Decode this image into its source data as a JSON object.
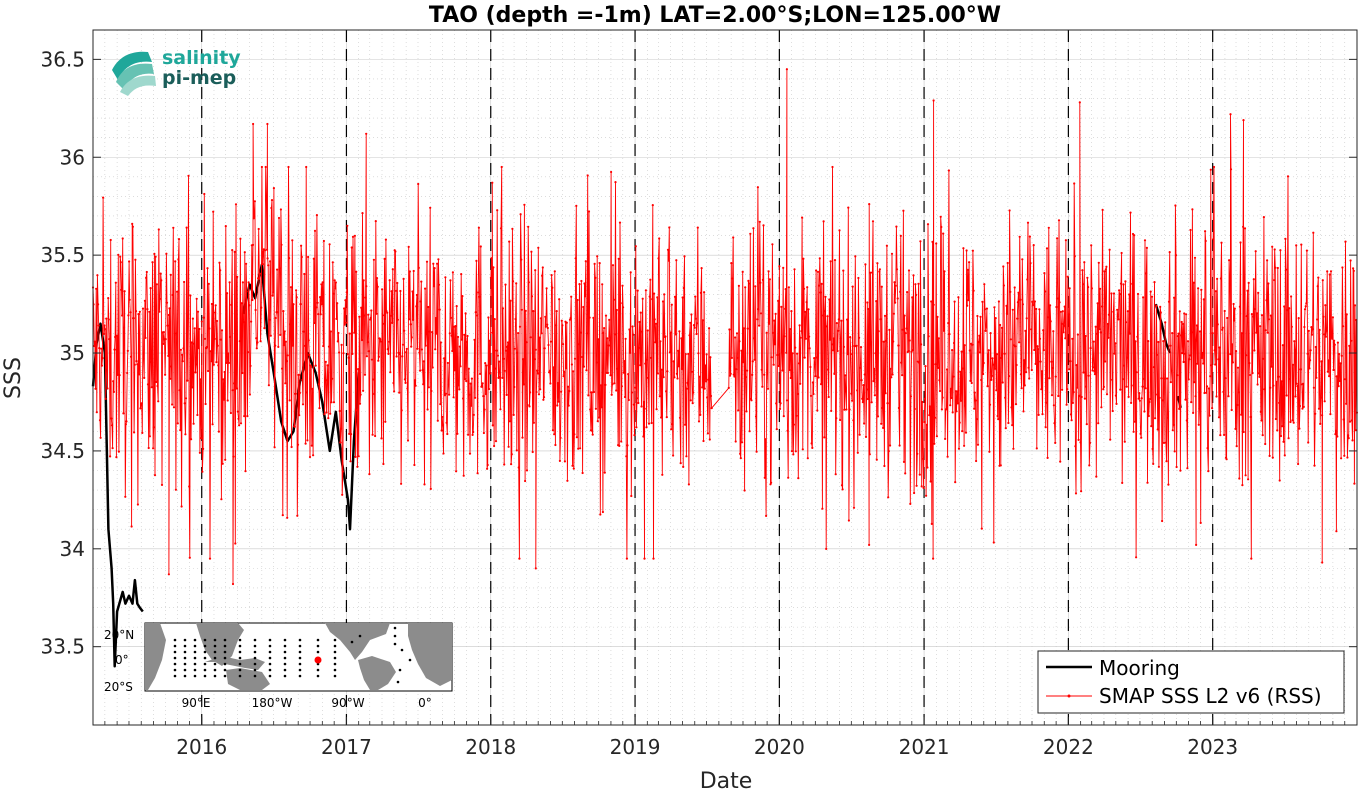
{
  "chart_data": {
    "type": "line",
    "title": "TAO (depth =-1m) LAT=2.00°S;LON=125.00°W",
    "xlabel": "Date",
    "ylabel": "SSS",
    "xlim": [
      "2015-04-01",
      "2024-01-01"
    ],
    "ylim": [
      33.1,
      36.65
    ],
    "yticks": [
      33.5,
      34,
      34.5,
      35,
      35.5,
      36,
      36.5
    ],
    "ytick_labels": [
      "33.5",
      "34",
      "34.5",
      "35",
      "35.5",
      "36",
      "36.5"
    ],
    "xticks": [
      "2016-01-01",
      "2017-01-01",
      "2018-01-01",
      "2019-01-01",
      "2020-01-01",
      "2021-01-01",
      "2022-01-01",
      "2023-01-01"
    ],
    "xtick_labels": [
      "2016",
      "2017",
      "2018",
      "2019",
      "2020",
      "2021",
      "2022",
      "2023"
    ],
    "vlines_dashed": [
      "2016-01-01",
      "2017-01-01",
      "2018-01-01",
      "2019-01-01",
      "2020-01-01",
      "2021-01-01",
      "2022-01-01",
      "2023-01-01"
    ],
    "grid": true,
    "legend_position": "bottom-right",
    "series": [
      {
        "name": "Mooring",
        "color": "#000000",
        "style": "thick line",
        "points": [
          [
            "2015-04-01",
            34.83
          ],
          [
            "2015-04-10",
            35.05
          ],
          [
            "2015-04-20",
            35.15
          ],
          [
            "2015-05-01",
            35.0
          ],
          [
            "2015-05-10",
            34.1
          ],
          [
            "2015-05-14",
            34.0
          ],
          [
            "2015-05-18",
            33.9
          ],
          [
            "2015-05-22",
            33.72
          ],
          [
            "2015-05-26",
            33.4
          ],
          [
            "2015-06-01",
            33.68
          ],
          [
            "2015-06-08",
            33.73
          ],
          [
            "2015-06-15",
            33.78
          ],
          [
            "2015-06-22",
            33.72
          ],
          [
            "2015-07-01",
            33.76
          ],
          [
            "2015-07-10",
            33.72
          ],
          [
            "2015-07-16",
            33.84
          ],
          [
            "2015-07-22",
            33.72
          ],
          [
            "2015-07-28",
            33.7
          ],
          [
            "2015-08-05",
            33.68
          ]
        ],
        "segments_later": [
          [
            [
              "2016-04-15",
              35.2
            ],
            [
              "2016-05-01",
              35.35
            ],
            [
              "2016-05-15",
              35.28
            ],
            [
              "2016-06-01",
              35.45
            ],
            [
              "2016-06-15",
              35.1
            ],
            [
              "2016-07-01",
              34.9
            ],
            [
              "2016-07-20",
              34.65
            ],
            [
              "2016-08-05",
              34.55
            ],
            [
              "2016-08-20",
              34.6
            ],
            [
              "2016-09-05",
              34.85
            ],
            [
              "2016-09-25",
              35.0
            ],
            [
              "2016-10-15",
              34.9
            ],
            [
              "2016-11-01",
              34.75
            ],
            [
              "2016-11-20",
              34.5
            ],
            [
              "2016-12-05",
              34.7
            ],
            [
              "2016-12-20",
              34.45
            ],
            [
              "2017-01-05",
              34.25
            ],
            [
              "2017-01-10",
              34.1
            ],
            [
              "2017-01-20",
              34.55
            ],
            [
              "2017-02-01",
              34.9
            ]
          ],
          [
            [
              "2022-08-10",
              35.25
            ],
            [
              "2022-08-25",
              35.15
            ],
            [
              "2022-09-05",
              35.05
            ],
            [
              "2022-09-15",
              35.0
            ]
          ],
          [
            [
              "2022-10-05",
              34.78
            ],
            [
              "2022-10-12",
              34.72
            ]
          ]
        ]
      },
      {
        "name": "SMAP SSS L2 v6 (RSS)",
        "color": "#ff0000",
        "style": "thin line with dot markers",
        "summary": {
          "start": "2015-04-01",
          "end": "2024-01-01",
          "typical_range": [
            34.3,
            35.8
          ],
          "mean": 35.0,
          "gap": [
            "2019-07-15",
            "2019-08-25"
          ],
          "extremes": [
            [
              "2015-10-10",
              33.87
            ],
            [
              "2016-03-20",
              33.82
            ],
            [
              "2016-05-10",
              36.17
            ],
            [
              "2016-06-15",
              36.17
            ],
            [
              "2017-02-20",
              36.12
            ],
            [
              "2018-01-05",
              35.87
            ],
            [
              "2018-04-25",
              33.9
            ],
            [
              "2019-01-25",
              33.95
            ],
            [
              "2020-01-20",
              36.45
            ],
            [
              "2020-08-15",
              34.02
            ],
            [
              "2021-01-25",
              36.29
            ],
            [
              "2022-01-30",
              36.28
            ],
            [
              "2022-11-20",
              34.02
            ],
            [
              "2023-02-15",
              36.22
            ],
            [
              "2023-03-20",
              36.19
            ],
            [
              "2023-10-05",
              33.93
            ],
            [
              "2023-11-10",
              34.09
            ]
          ]
        }
      }
    ],
    "inset_map": {
      "ytick_labels": [
        "20°N",
        "0°",
        "20°S"
      ],
      "xtick_labels": [
        "90°E",
        "180°W",
        "90°W",
        "0°"
      ],
      "highlight_marker_color": "#ff0000"
    }
  },
  "logo": {
    "line1": "salinity",
    "line2": "pi-mep"
  }
}
